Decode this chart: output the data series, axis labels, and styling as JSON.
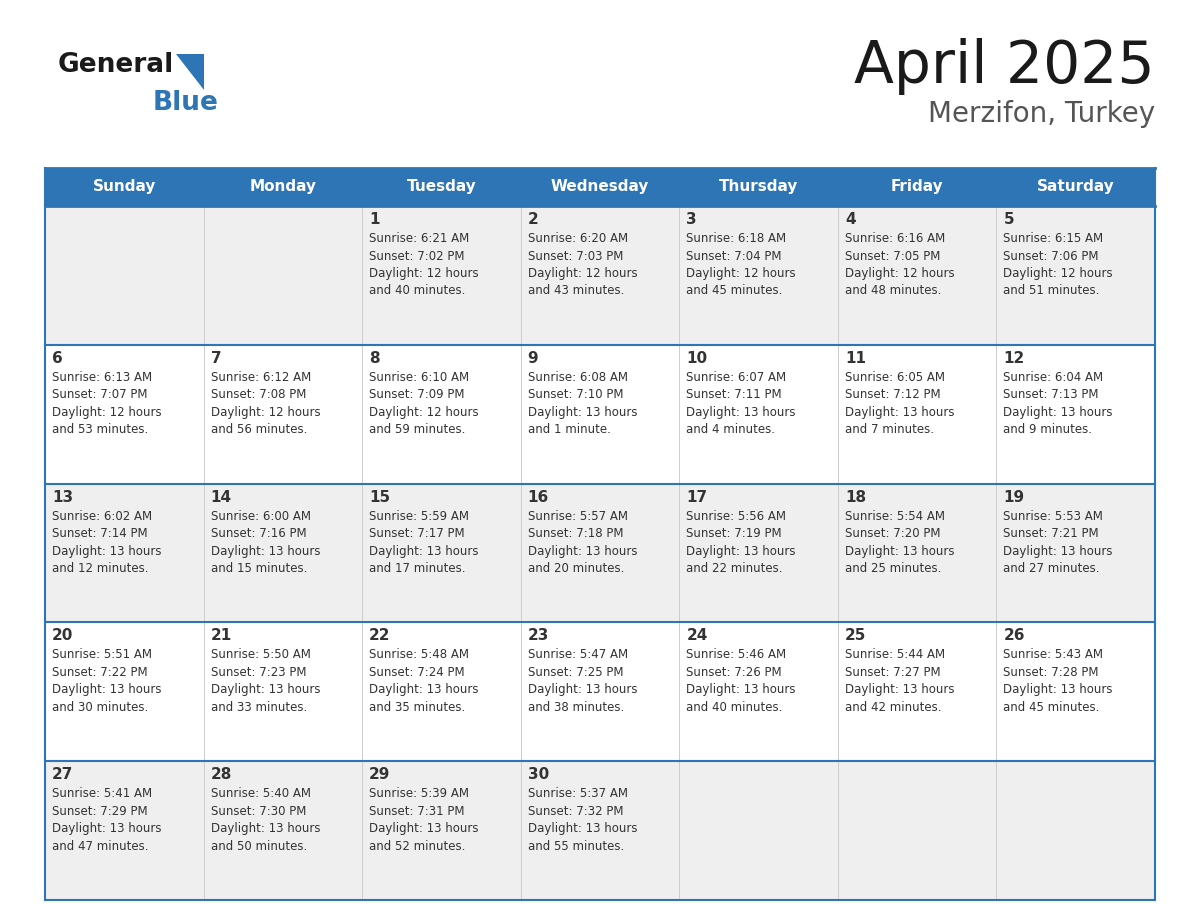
{
  "title": "April 2025",
  "subtitle": "Merzifon, Turkey",
  "header_color": "#2E75B6",
  "header_text_color": "#FFFFFF",
  "cell_bg_row0": "#EFEFEF",
  "cell_bg_row1": "#FFFFFF",
  "cell_bg_row2": "#EFEFEF",
  "cell_bg_row3": "#FFFFFF",
  "cell_bg_row4": "#EFEFEF",
  "border_color": "#2E75B6",
  "grid_color": "#CCCCCC",
  "text_color": "#333333",
  "days_of_week": [
    "Sunday",
    "Monday",
    "Tuesday",
    "Wednesday",
    "Thursday",
    "Friday",
    "Saturday"
  ],
  "calendar_data": [
    [
      {
        "day": "",
        "info": ""
      },
      {
        "day": "",
        "info": ""
      },
      {
        "day": "1",
        "info": "Sunrise: 6:21 AM\nSunset: 7:02 PM\nDaylight: 12 hours\nand 40 minutes."
      },
      {
        "day": "2",
        "info": "Sunrise: 6:20 AM\nSunset: 7:03 PM\nDaylight: 12 hours\nand 43 minutes."
      },
      {
        "day": "3",
        "info": "Sunrise: 6:18 AM\nSunset: 7:04 PM\nDaylight: 12 hours\nand 45 minutes."
      },
      {
        "day": "4",
        "info": "Sunrise: 6:16 AM\nSunset: 7:05 PM\nDaylight: 12 hours\nand 48 minutes."
      },
      {
        "day": "5",
        "info": "Sunrise: 6:15 AM\nSunset: 7:06 PM\nDaylight: 12 hours\nand 51 minutes."
      }
    ],
    [
      {
        "day": "6",
        "info": "Sunrise: 6:13 AM\nSunset: 7:07 PM\nDaylight: 12 hours\nand 53 minutes."
      },
      {
        "day": "7",
        "info": "Sunrise: 6:12 AM\nSunset: 7:08 PM\nDaylight: 12 hours\nand 56 minutes."
      },
      {
        "day": "8",
        "info": "Sunrise: 6:10 AM\nSunset: 7:09 PM\nDaylight: 12 hours\nand 59 minutes."
      },
      {
        "day": "9",
        "info": "Sunrise: 6:08 AM\nSunset: 7:10 PM\nDaylight: 13 hours\nand 1 minute."
      },
      {
        "day": "10",
        "info": "Sunrise: 6:07 AM\nSunset: 7:11 PM\nDaylight: 13 hours\nand 4 minutes."
      },
      {
        "day": "11",
        "info": "Sunrise: 6:05 AM\nSunset: 7:12 PM\nDaylight: 13 hours\nand 7 minutes."
      },
      {
        "day": "12",
        "info": "Sunrise: 6:04 AM\nSunset: 7:13 PM\nDaylight: 13 hours\nand 9 minutes."
      }
    ],
    [
      {
        "day": "13",
        "info": "Sunrise: 6:02 AM\nSunset: 7:14 PM\nDaylight: 13 hours\nand 12 minutes."
      },
      {
        "day": "14",
        "info": "Sunrise: 6:00 AM\nSunset: 7:16 PM\nDaylight: 13 hours\nand 15 minutes."
      },
      {
        "day": "15",
        "info": "Sunrise: 5:59 AM\nSunset: 7:17 PM\nDaylight: 13 hours\nand 17 minutes."
      },
      {
        "day": "16",
        "info": "Sunrise: 5:57 AM\nSunset: 7:18 PM\nDaylight: 13 hours\nand 20 minutes."
      },
      {
        "day": "17",
        "info": "Sunrise: 5:56 AM\nSunset: 7:19 PM\nDaylight: 13 hours\nand 22 minutes."
      },
      {
        "day": "18",
        "info": "Sunrise: 5:54 AM\nSunset: 7:20 PM\nDaylight: 13 hours\nand 25 minutes."
      },
      {
        "day": "19",
        "info": "Sunrise: 5:53 AM\nSunset: 7:21 PM\nDaylight: 13 hours\nand 27 minutes."
      }
    ],
    [
      {
        "day": "20",
        "info": "Sunrise: 5:51 AM\nSunset: 7:22 PM\nDaylight: 13 hours\nand 30 minutes."
      },
      {
        "day": "21",
        "info": "Sunrise: 5:50 AM\nSunset: 7:23 PM\nDaylight: 13 hours\nand 33 minutes."
      },
      {
        "day": "22",
        "info": "Sunrise: 5:48 AM\nSunset: 7:24 PM\nDaylight: 13 hours\nand 35 minutes."
      },
      {
        "day": "23",
        "info": "Sunrise: 5:47 AM\nSunset: 7:25 PM\nDaylight: 13 hours\nand 38 minutes."
      },
      {
        "day": "24",
        "info": "Sunrise: 5:46 AM\nSunset: 7:26 PM\nDaylight: 13 hours\nand 40 minutes."
      },
      {
        "day": "25",
        "info": "Sunrise: 5:44 AM\nSunset: 7:27 PM\nDaylight: 13 hours\nand 42 minutes."
      },
      {
        "day": "26",
        "info": "Sunrise: 5:43 AM\nSunset: 7:28 PM\nDaylight: 13 hours\nand 45 minutes."
      }
    ],
    [
      {
        "day": "27",
        "info": "Sunrise: 5:41 AM\nSunset: 7:29 PM\nDaylight: 13 hours\nand 47 minutes."
      },
      {
        "day": "28",
        "info": "Sunrise: 5:40 AM\nSunset: 7:30 PM\nDaylight: 13 hours\nand 50 minutes."
      },
      {
        "day": "29",
        "info": "Sunrise: 5:39 AM\nSunset: 7:31 PM\nDaylight: 13 hours\nand 52 minutes."
      },
      {
        "day": "30",
        "info": "Sunrise: 5:37 AM\nSunset: 7:32 PM\nDaylight: 13 hours\nand 55 minutes."
      },
      {
        "day": "",
        "info": ""
      },
      {
        "day": "",
        "info": ""
      },
      {
        "day": "",
        "info": ""
      }
    ]
  ]
}
